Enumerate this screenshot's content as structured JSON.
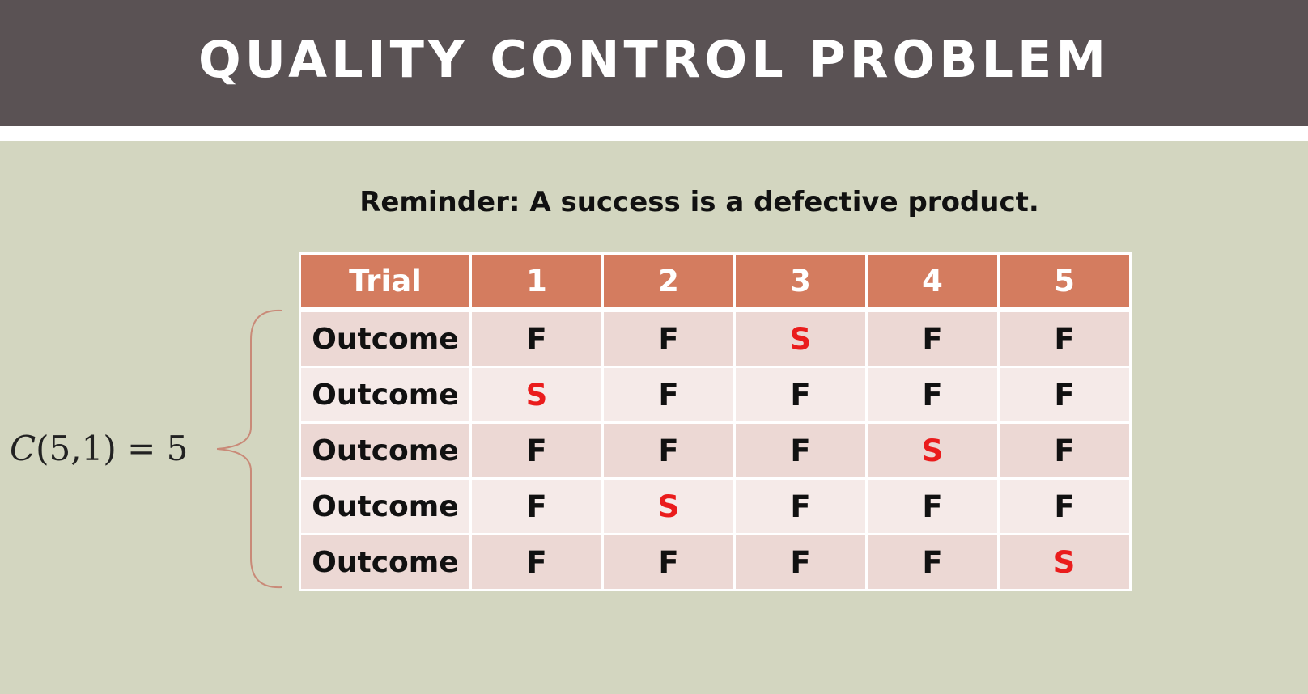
{
  "title": "QUALITY CONTROL PROBLEM",
  "reminder": "Reminder: A success is a defective product.",
  "formula": {
    "var": "C",
    "args": "(5,1)",
    "eq": "= 5"
  },
  "table": {
    "header_label": "Trial",
    "columns": [
      "1",
      "2",
      "3",
      "4",
      "5"
    ],
    "rows": [
      {
        "label": "Outcome",
        "cells": [
          "F",
          "F",
          "S",
          "F",
          "F"
        ]
      },
      {
        "label": "Outcome",
        "cells": [
          "S",
          "F",
          "F",
          "F",
          "F"
        ]
      },
      {
        "label": "Outcome",
        "cells": [
          "F",
          "F",
          "F",
          "S",
          "F"
        ]
      },
      {
        "label": "Outcome",
        "cells": [
          "F",
          "S",
          "F",
          "F",
          "F"
        ]
      },
      {
        "label": "Outcome",
        "cells": [
          "F",
          "F",
          "F",
          "F",
          "S"
        ]
      }
    ]
  },
  "colors": {
    "title_bar": "#5a5254",
    "background": "#d3d6c0",
    "table_header": "#d47c5f",
    "row_odd": "#ecd8d4",
    "row_even": "#f5eae8",
    "success_text": "#ea1c1c",
    "brace": "#c98a78"
  }
}
